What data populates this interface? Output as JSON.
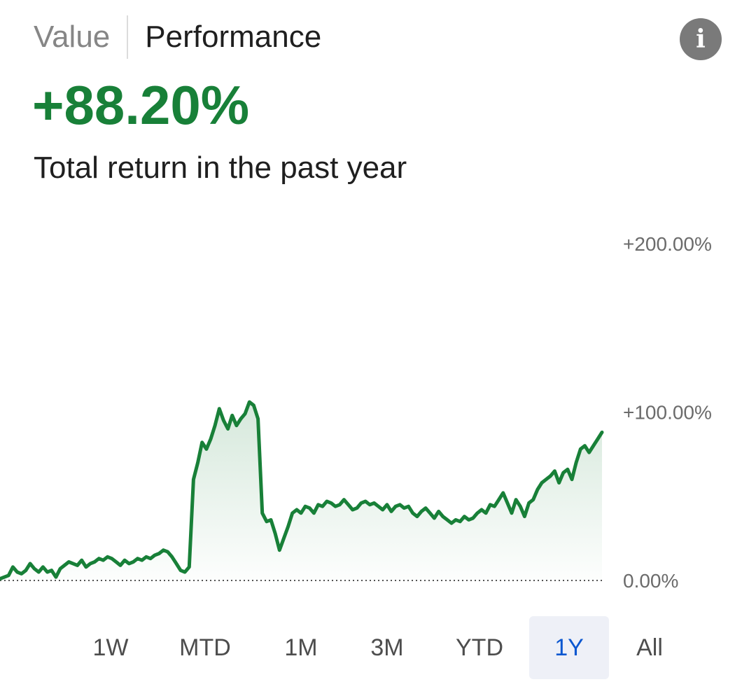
{
  "tabs": [
    {
      "label": "Value",
      "active": false
    },
    {
      "label": "Performance",
      "active": true
    }
  ],
  "info_icon": "info-icon",
  "summary": {
    "value": "+88.20%",
    "caption": "Total return in the past year"
  },
  "colors": {
    "positive": "#188038",
    "active_range_bg": "#eef0f7",
    "active_range_text": "#0b57d0"
  },
  "ranges": [
    {
      "label": "1W",
      "active": false
    },
    {
      "label": "MTD",
      "active": false
    },
    {
      "label": "1M",
      "active": false
    },
    {
      "label": "3M",
      "active": false
    },
    {
      "label": "YTD",
      "active": false
    },
    {
      "label": "1Y",
      "active": true
    },
    {
      "label": "All",
      "active": false
    }
  ],
  "chart_data": {
    "type": "area",
    "title": "",
    "xlabel": "",
    "ylabel": "",
    "ylim": [
      0,
      200
    ],
    "y_ticks": [
      {
        "value": 200,
        "label": "+200.00%"
      },
      {
        "value": 100,
        "label": "+100.00%"
      },
      {
        "value": 0,
        "label": "0.00%"
      }
    ],
    "baseline": {
      "value": 0,
      "style": "dotted"
    },
    "grid": false,
    "series": [
      {
        "values": [
          1,
          2,
          3,
          8,
          5,
          4,
          6,
          10,
          7,
          5,
          8,
          5,
          6,
          2,
          7,
          9,
          11,
          10,
          9,
          12,
          8,
          10,
          11,
          13,
          12,
          14,
          13,
          11,
          9,
          12,
          10,
          11,
          13,
          12,
          14,
          13,
          15,
          16,
          18,
          17,
          14,
          10,
          6,
          5,
          8,
          60,
          70,
          82,
          78,
          84,
          92,
          102,
          95,
          90,
          98,
          92,
          96,
          99,
          106,
          104,
          96,
          40,
          35,
          36,
          28,
          18,
          25,
          32,
          40,
          42,
          40,
          44,
          43,
          40,
          45,
          44,
          47,
          46,
          44,
          45,
          48,
          45,
          42,
          43,
          46,
          47,
          45,
          46,
          44,
          42,
          45,
          41,
          44,
          45,
          43,
          44,
          40,
          38,
          41,
          43,
          40,
          37,
          41,
          38,
          36,
          34,
          36,
          35,
          38,
          36,
          37,
          40,
          42,
          40,
          45,
          44,
          48,
          52,
          46,
          40,
          48,
          44,
          38,
          46,
          48,
          54,
          58,
          60,
          62,
          65,
          58,
          64,
          66,
          60,
          70,
          78,
          80,
          76,
          80,
          84,
          88
        ]
      }
    ]
  }
}
